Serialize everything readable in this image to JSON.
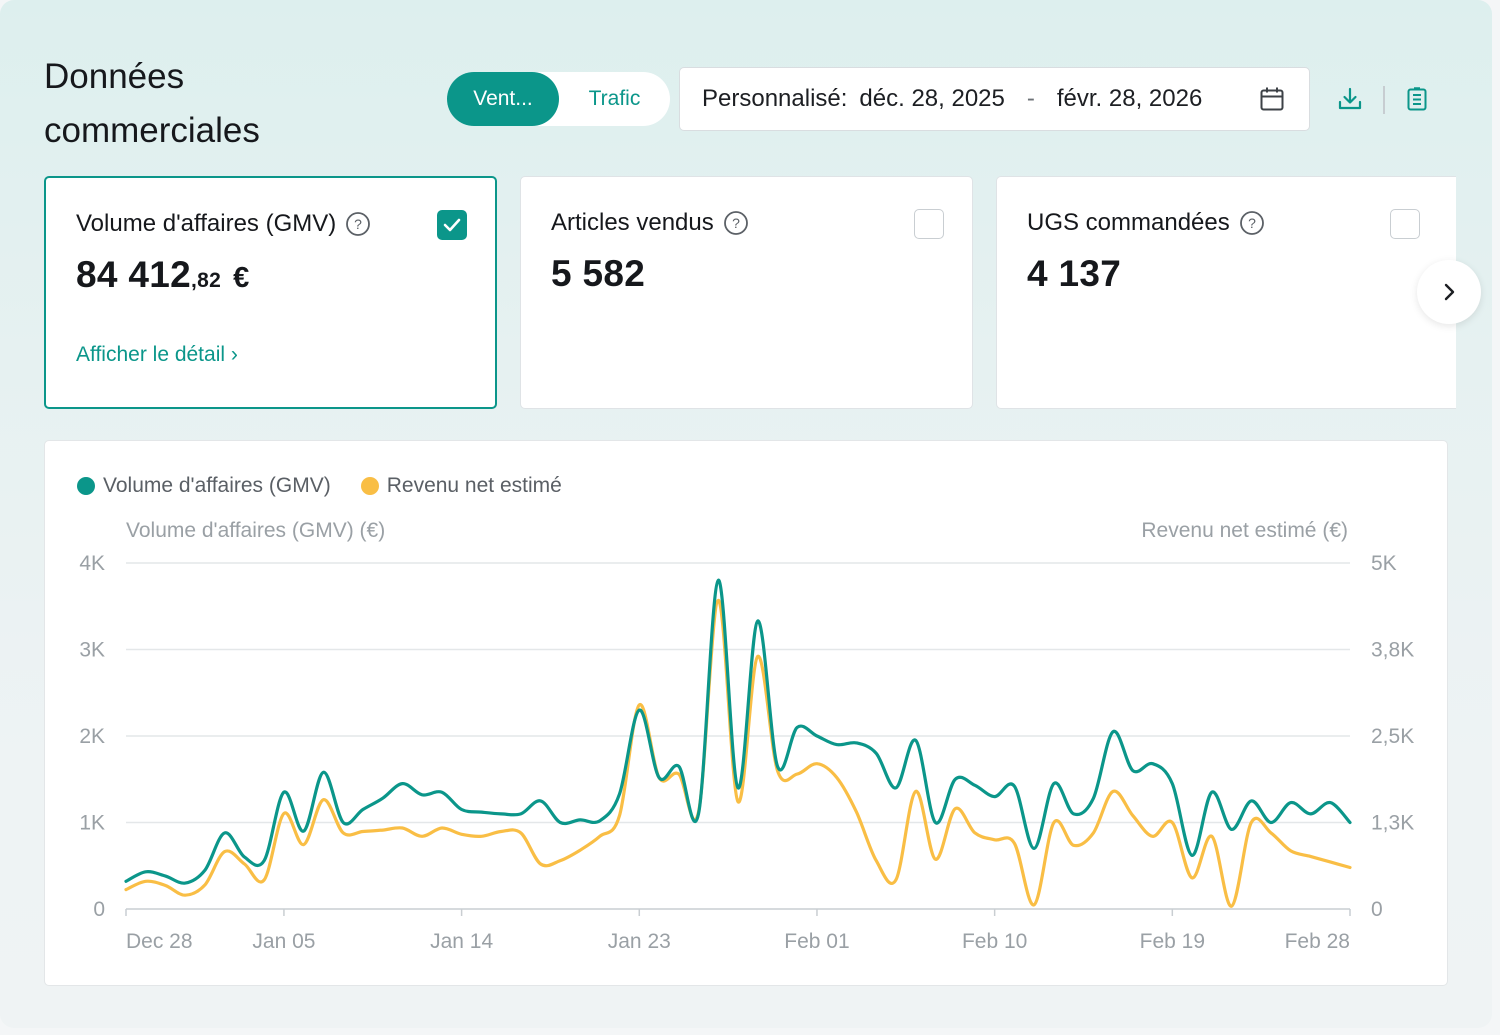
{
  "header": {
    "title": "Données commerciales",
    "tabs": [
      {
        "label": "Vent...",
        "active": true
      },
      {
        "label": "Trafic",
        "active": false
      }
    ],
    "date_range": {
      "label": "Personnalisé:",
      "start": "déc. 28, 2025",
      "separator": "-",
      "end": "févr. 28, 2026"
    },
    "icons": [
      "calendar-icon",
      "download-icon",
      "clipboard-icon"
    ]
  },
  "metrics": [
    {
      "title": "Volume d'affaires (GMV)",
      "value_int": "84 412",
      "value_dec": ",82",
      "currency": "€",
      "checked": true,
      "link": "Afficher le détail"
    },
    {
      "title": "Articles vendus",
      "value_int": "5 582",
      "value_dec": "",
      "currency": "",
      "checked": false
    },
    {
      "title": "UGS commandées",
      "value_int": "4 137",
      "value_dec": "",
      "currency": "",
      "checked": false
    }
  ],
  "colors": {
    "accent": "#0b968a",
    "series_gmv": "#0b968a",
    "series_revenue": "#f9be45"
  },
  "chart_data": {
    "type": "line",
    "legend": [
      "Volume d'affaires (GMV)",
      "Revenu net estimé"
    ],
    "legend_position": "top-left",
    "grid": true,
    "left_axis": {
      "label": "Volume d'affaires (GMV) (€)",
      "ticks": [
        "0",
        "1K",
        "2K",
        "3K",
        "4K"
      ],
      "range": [
        0,
        4000
      ]
    },
    "right_axis": {
      "label": "Revenu net estimé (€)",
      "ticks": [
        "0",
        "1,3K",
        "2,5K",
        "3,8K",
        "5K"
      ],
      "range": [
        0,
        5000
      ]
    },
    "x_ticks": [
      "Dec 28",
      "Jan 05",
      "Jan 14",
      "Jan 23",
      "Feb 01",
      "Feb 10",
      "Feb 19",
      "Feb 28"
    ],
    "x_tick_day_index": [
      0,
      8,
      17,
      26,
      35,
      44,
      53,
      62
    ],
    "series": [
      {
        "name": "Volume d'affaires (GMV)",
        "axis": "left",
        "color": "#0b968a",
        "values": [
          320,
          430,
          380,
          300,
          450,
          880,
          600,
          560,
          1350,
          900,
          1580,
          1000,
          1150,
          1280,
          1450,
          1320,
          1350,
          1150,
          1120,
          1100,
          1100,
          1250,
          1000,
          1030,
          1020,
          1330,
          2300,
          1520,
          1650,
          1100,
          3800,
          1400,
          3330,
          1650,
          2100,
          2000,
          1900,
          1920,
          1800,
          1400,
          1950,
          1000,
          1500,
          1430,
          1300,
          1420,
          700,
          1450,
          1100,
          1280,
          2050,
          1600,
          1680,
          1450,
          620,
          1350,
          920,
          1250,
          1000,
          1230,
          1100,
          1230,
          1000
        ]
      },
      {
        "name": "Revenu net estimé",
        "axis": "right",
        "color": "#f9be45",
        "values": [
          280,
          400,
          340,
          200,
          350,
          830,
          650,
          420,
          1380,
          930,
          1580,
          1100,
          1120,
          1140,
          1170,
          1050,
          1170,
          1080,
          1050,
          1120,
          1100,
          650,
          700,
          850,
          1050,
          1350,
          2950,
          1900,
          1950,
          1400,
          4460,
          1550,
          3650,
          2000,
          1950,
          2100,
          1900,
          1400,
          700,
          420,
          1700,
          720,
          1450,
          1100,
          1000,
          950,
          60,
          1250,
          920,
          1100,
          1700,
          1350,
          1050,
          1250,
          450,
          1050,
          40,
          1250,
          1100,
          840,
          760,
          680,
          600
        ]
      }
    ]
  }
}
